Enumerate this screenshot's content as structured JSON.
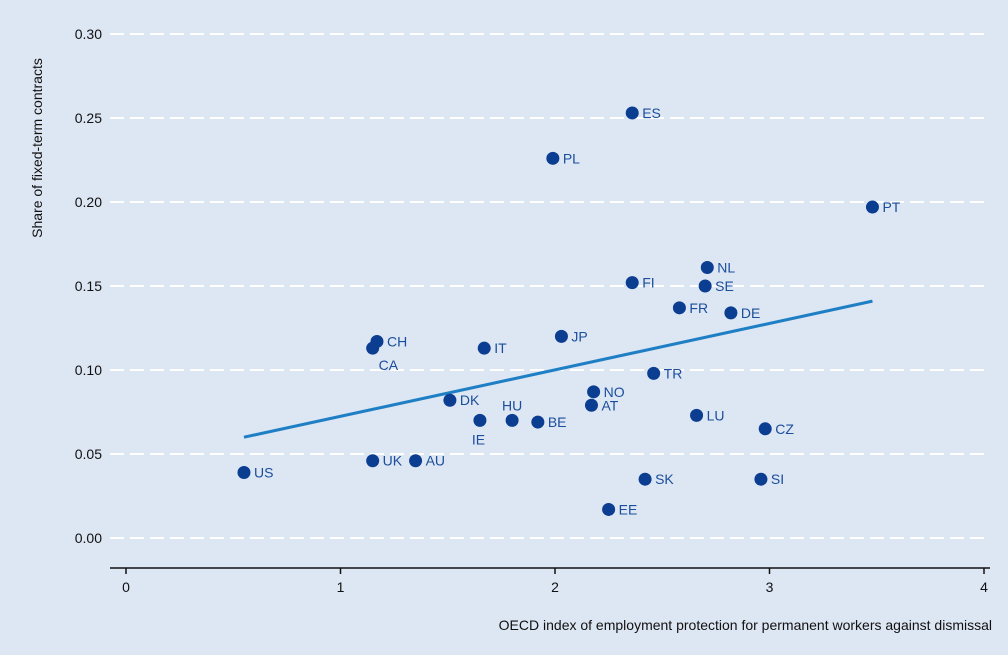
{
  "chart_data": {
    "type": "scatter",
    "xlabel": "OECD index of employment protection for permanent workers against dismissal",
    "ylabel": "Share of fixed-term contracts",
    "xlim": [
      0,
      4
    ],
    "ylim": [
      0,
      0.3
    ],
    "x_ticks": [
      "0",
      "1",
      "2",
      "3",
      "4"
    ],
    "y_ticks": [
      "0.00",
      "0.05",
      "0.10",
      "0.15",
      "0.20",
      "0.25",
      "0.30"
    ],
    "grid": "horizontal dashed",
    "colors": {
      "point": "#0b3d91",
      "trend": "#1f7fc4",
      "label": "#1a4e9c",
      "background": "#dde6f3",
      "grid": "#ffffff"
    },
    "points": [
      {
        "label": "US",
        "x": 0.55,
        "y": 0.039
      },
      {
        "label": "CH",
        "x": 1.17,
        "y": 0.117
      },
      {
        "label": "CA",
        "x": 1.15,
        "y": 0.113
      },
      {
        "label": "UK",
        "x": 1.15,
        "y": 0.046
      },
      {
        "label": "AU",
        "x": 1.35,
        "y": 0.046
      },
      {
        "label": "DK",
        "x": 1.51,
        "y": 0.082
      },
      {
        "label": "IE",
        "x": 1.65,
        "y": 0.07
      },
      {
        "label": "IT",
        "x": 1.67,
        "y": 0.113
      },
      {
        "label": "HU",
        "x": 1.8,
        "y": 0.07
      },
      {
        "label": "BE",
        "x": 1.92,
        "y": 0.069
      },
      {
        "label": "PL",
        "x": 1.99,
        "y": 0.226
      },
      {
        "label": "JP",
        "x": 2.03,
        "y": 0.12
      },
      {
        "label": "AT",
        "x": 2.17,
        "y": 0.079
      },
      {
        "label": "NO",
        "x": 2.18,
        "y": 0.087
      },
      {
        "label": "EE",
        "x": 2.25,
        "y": 0.017
      },
      {
        "label": "ES",
        "x": 2.36,
        "y": 0.253
      },
      {
        "label": "FI",
        "x": 2.36,
        "y": 0.152
      },
      {
        "label": "SK",
        "x": 2.42,
        "y": 0.035
      },
      {
        "label": "TR",
        "x": 2.46,
        "y": 0.098
      },
      {
        "label": "FR",
        "x": 2.58,
        "y": 0.137
      },
      {
        "label": "LU",
        "x": 2.66,
        "y": 0.073
      },
      {
        "label": "SE",
        "x": 2.7,
        "y": 0.15
      },
      {
        "label": "NL",
        "x": 2.71,
        "y": 0.161
      },
      {
        "label": "DE",
        "x": 2.82,
        "y": 0.134
      },
      {
        "label": "SI",
        "x": 2.96,
        "y": 0.035
      },
      {
        "label": "CZ",
        "x": 2.98,
        "y": 0.065
      },
      {
        "label": "PT",
        "x": 3.48,
        "y": 0.197
      }
    ],
    "trendline": {
      "x": [
        0.55,
        3.48
      ],
      "y": [
        0.06,
        0.141
      ]
    }
  }
}
